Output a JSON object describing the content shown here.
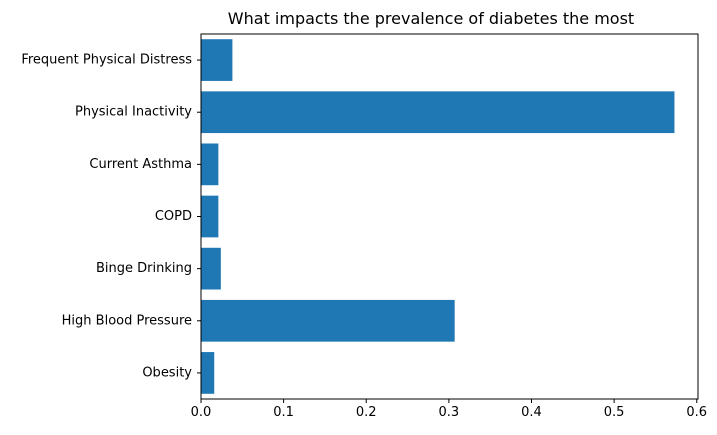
{
  "chart_data": {
    "type": "bar",
    "orientation": "horizontal",
    "title": "What impacts the prevalence of diabetes the most",
    "xlabel": "",
    "ylabel": "",
    "categories": [
      "Obesity",
      "High Blood Pressure",
      "Binge Drinking",
      "COPD",
      "Current Asthma",
      "Physical Inactivity",
      "Frequent Physical Distress"
    ],
    "values": [
      0.016,
      0.307,
      0.024,
      0.021,
      0.021,
      0.573,
      0.038
    ],
    "xlim": [
      0,
      0.6
    ],
    "xticks": [
      0.0,
      0.1,
      0.2,
      0.3,
      0.4,
      0.5,
      0.6
    ],
    "xtick_labels": [
      "0.0",
      "0.1",
      "0.2",
      "0.3",
      "0.4",
      "0.5",
      "0.6"
    ],
    "grid": false,
    "legend": "none",
    "bar_color": "#1f77b4"
  }
}
